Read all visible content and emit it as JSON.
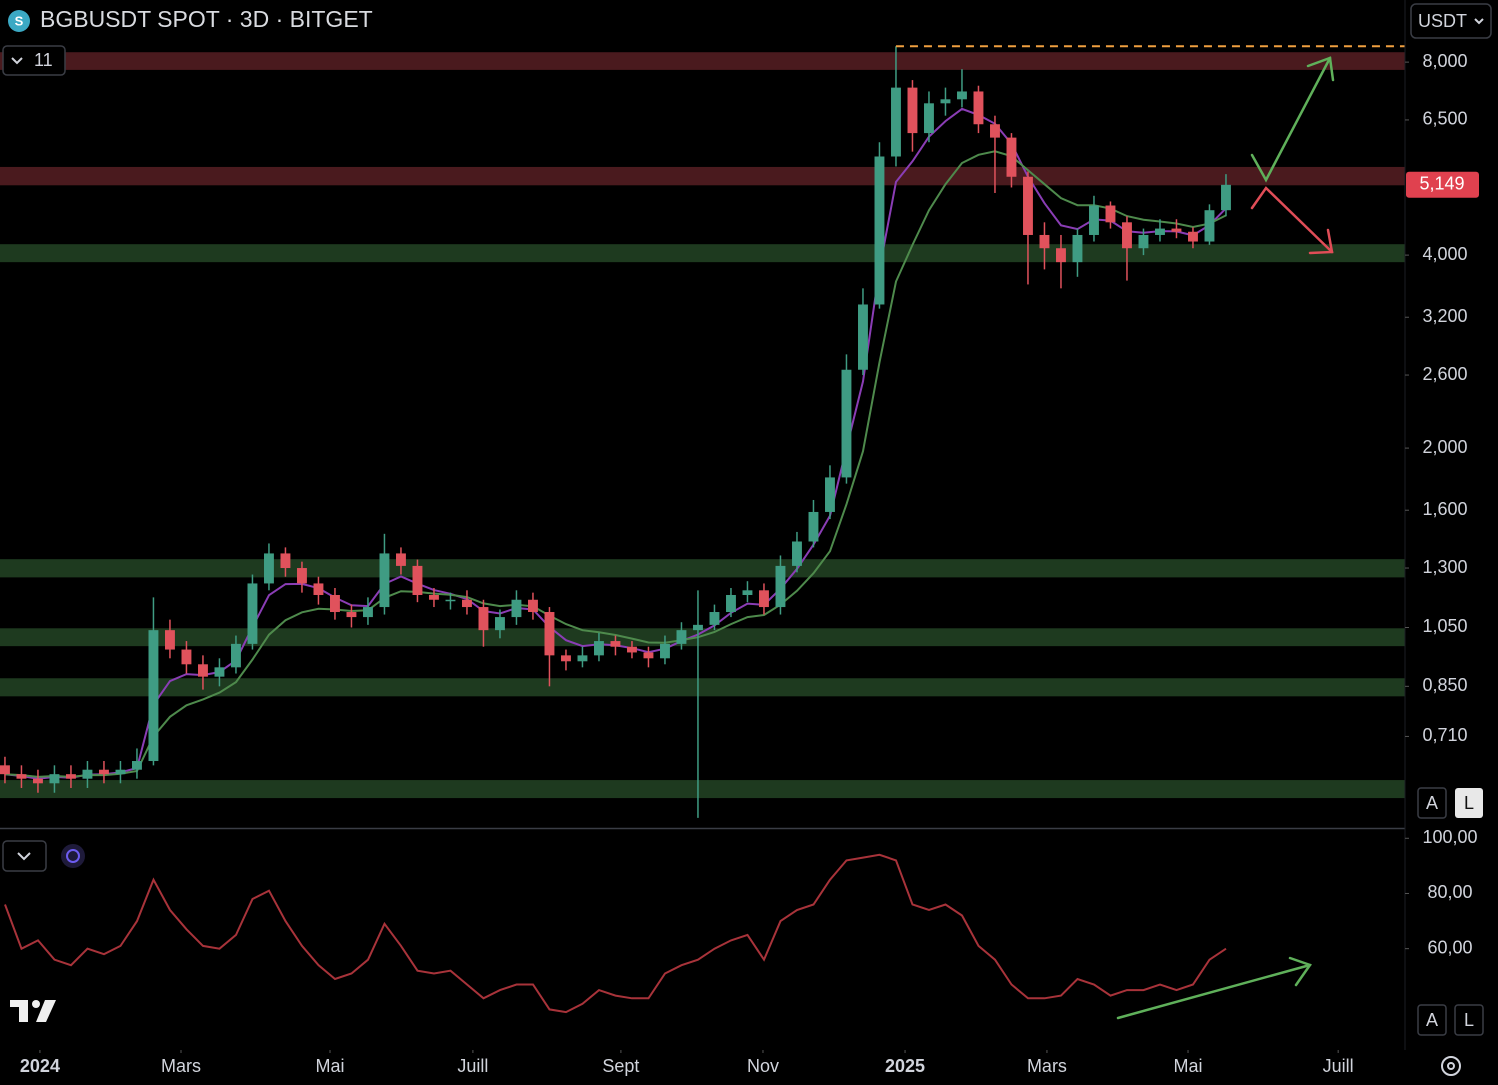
{
  "ui": {
    "indicator_count": "11",
    "currency": "USDT",
    "price_scale_buttons": [
      "A",
      "L"
    ],
    "rsi_scale_buttons": [
      "A",
      "L"
    ]
  },
  "chart_data": [
    {
      "type": "candlestick",
      "title": "BGBUSDT SPOT · 3D · BITGET",
      "log_scale": true,
      "up_color": "#3f9c83",
      "down_color": "#e0525c",
      "xlim": [
        -0.3,
        84.85
      ],
      "ylim": [
        0.511,
        10
      ],
      "yticks": [
        {
          "value": 8.0,
          "label": "8,000"
        },
        {
          "value": 6.5,
          "label": "6,500"
        },
        {
          "value": 4.0,
          "label": "4,000"
        },
        {
          "value": 3.2,
          "label": "3,200"
        },
        {
          "value": 2.6,
          "label": "2,600"
        },
        {
          "value": 2.0,
          "label": "2,000"
        },
        {
          "value": 1.6,
          "label": "1,600"
        },
        {
          "value": 1.3,
          "label": "1,300"
        },
        {
          "value": 1.05,
          "label": "1,050"
        },
        {
          "value": 0.85,
          "label": "0,850"
        },
        {
          "value": 0.71,
          "label": "0,710"
        }
      ],
      "last_price": {
        "value": 5.149,
        "label": "5,149"
      },
      "last_price_color": "#e0414f",
      "high_line": 8.47,
      "high_line_color": "#f0a040",
      "zones": [
        {
          "from": 7.78,
          "to": 8.29,
          "color": "#4a1a1e"
        },
        {
          "from": 5.14,
          "to": 5.49,
          "color": "#4a1a1e"
        },
        {
          "from": 3.9,
          "to": 4.16,
          "color": "#1e3a1f"
        },
        {
          "from": 1.257,
          "to": 1.342,
          "color": "#1e3a1f"
        },
        {
          "from": 0.982,
          "to": 1.047,
          "color": "#1e3a1f"
        },
        {
          "from": 0.82,
          "to": 0.875,
          "color": "#1e3a1f"
        },
        {
          "from": 0.569,
          "to": 0.607,
          "color": "#1e3a1f"
        }
      ],
      "candles": [
        [
          0.64,
          0.66,
          0.6,
          0.62
        ],
        [
          0.62,
          0.64,
          0.59,
          0.61
        ],
        [
          0.61,
          0.63,
          0.58,
          0.6
        ],
        [
          0.6,
          0.64,
          0.58,
          0.62
        ],
        [
          0.62,
          0.64,
          0.59,
          0.61
        ],
        [
          0.61,
          0.65,
          0.59,
          0.63
        ],
        [
          0.63,
          0.65,
          0.6,
          0.62
        ],
        [
          0.62,
          0.65,
          0.6,
          0.63
        ],
        [
          0.63,
          0.68,
          0.61,
          0.65
        ],
        [
          0.65,
          1.17,
          0.64,
          1.04
        ],
        [
          1.04,
          1.08,
          0.94,
          0.97
        ],
        [
          0.97,
          1.0,
          0.89,
          0.92
        ],
        [
          0.92,
          0.95,
          0.84,
          0.88
        ],
        [
          0.88,
          0.94,
          0.85,
          0.91
        ],
        [
          0.91,
          1.02,
          0.89,
          0.99
        ],
        [
          0.99,
          1.27,
          0.97,
          1.23
        ],
        [
          1.23,
          1.42,
          1.2,
          1.37
        ],
        [
          1.37,
          1.4,
          1.26,
          1.3
        ],
        [
          1.3,
          1.33,
          1.19,
          1.23
        ],
        [
          1.23,
          1.26,
          1.14,
          1.18
        ],
        [
          1.18,
          1.21,
          1.08,
          1.11
        ],
        [
          1.11,
          1.14,
          1.05,
          1.09
        ],
        [
          1.09,
          1.17,
          1.06,
          1.13
        ],
        [
          1.13,
          1.47,
          1.1,
          1.37
        ],
        [
          1.37,
          1.4,
          1.27,
          1.31
        ],
        [
          1.31,
          1.34,
          1.15,
          1.18
        ],
        [
          1.18,
          1.21,
          1.13,
          1.16
        ],
        [
          1.16,
          1.19,
          1.12,
          1.16
        ],
        [
          1.16,
          1.2,
          1.1,
          1.13
        ],
        [
          1.13,
          1.16,
          0.98,
          1.04
        ],
        [
          1.04,
          1.12,
          1.01,
          1.09
        ],
        [
          1.09,
          1.2,
          1.06,
          1.16
        ],
        [
          1.16,
          1.19,
          1.08,
          1.11
        ],
        [
          1.11,
          1.13,
          0.85,
          0.95
        ],
        [
          0.95,
          0.97,
          0.9,
          0.93
        ],
        [
          0.93,
          0.98,
          0.91,
          0.95
        ],
        [
          0.95,
          1.03,
          0.93,
          1.0
        ],
        [
          1.0,
          1.02,
          0.95,
          0.98
        ],
        [
          0.98,
          1.0,
          0.94,
          0.96
        ],
        [
          0.96,
          0.98,
          0.91,
          0.94
        ],
        [
          0.94,
          1.02,
          0.92,
          0.99
        ],
        [
          0.99,
          1.07,
          0.97,
          1.04
        ],
        [
          1.04,
          1.2,
          0.53,
          1.06
        ],
        [
          1.06,
          1.14,
          1.04,
          1.11
        ],
        [
          1.11,
          1.21,
          1.09,
          1.18
        ],
        [
          1.18,
          1.24,
          1.15,
          1.2
        ],
        [
          1.2,
          1.23,
          1.1,
          1.13
        ],
        [
          1.13,
          1.36,
          1.1,
          1.31
        ],
        [
          1.31,
          1.48,
          1.28,
          1.43
        ],
        [
          1.43,
          1.66,
          1.4,
          1.59
        ],
        [
          1.59,
          1.88,
          1.55,
          1.8
        ],
        [
          1.8,
          2.8,
          1.76,
          2.65
        ],
        [
          2.65,
          3.55,
          2.6,
          3.35
        ],
        [
          3.35,
          6.0,
          3.3,
          5.7
        ],
        [
          5.7,
          8.47,
          5.5,
          7.3
        ],
        [
          7.3,
          7.5,
          5.8,
          6.2
        ],
        [
          6.2,
          7.2,
          6.0,
          6.9
        ],
        [
          6.9,
          7.3,
          6.6,
          7.0
        ],
        [
          7.0,
          7.8,
          6.8,
          7.2
        ],
        [
          7.2,
          7.35,
          6.2,
          6.4
        ],
        [
          6.4,
          6.6,
          5.0,
          6.1
        ],
        [
          6.1,
          6.2,
          5.1,
          5.3
        ],
        [
          5.3,
          5.4,
          3.6,
          4.3
        ],
        [
          4.3,
          4.5,
          3.8,
          4.1
        ],
        [
          4.1,
          4.3,
          3.55,
          3.9
        ],
        [
          3.9,
          4.4,
          3.7,
          4.3
        ],
        [
          4.3,
          4.95,
          4.2,
          4.78
        ],
        [
          4.78,
          4.85,
          4.4,
          4.5
        ],
        [
          4.5,
          4.6,
          3.65,
          4.1
        ],
        [
          4.1,
          4.4,
          4.0,
          4.3
        ],
        [
          4.3,
          4.55,
          4.2,
          4.4
        ],
        [
          4.4,
          4.55,
          4.25,
          4.35
        ],
        [
          4.35,
          4.42,
          4.1,
          4.2
        ],
        [
          4.2,
          4.8,
          4.15,
          4.7
        ],
        [
          4.7,
          5.35,
          4.6,
          5.149
        ]
      ],
      "series": [
        {
          "color": "#8a3db5",
          "values": [
            0.62,
            0.616,
            0.61,
            0.614,
            0.612,
            0.619,
            0.62,
            0.624,
            0.634,
            0.796,
            0.866,
            0.888,
            0.885,
            0.895,
            0.933,
            1.052,
            1.179,
            1.227,
            1.228,
            1.209,
            1.169,
            1.137,
            1.134,
            1.228,
            1.261,
            1.229,
            1.201,
            1.185,
            1.163,
            1.114,
            1.104,
            1.126,
            1.12,
            1.052,
            1.003,
            0.982,
            0.989,
            0.985,
            0.975,
            0.961,
            0.973,
            1.0,
            1.024,
            1.058,
            1.107,
            1.144,
            1.139,
            1.207,
            1.296,
            1.414,
            1.568,
            2.001,
            2.541,
            3.805,
            5.203,
            5.602,
            6.121,
            6.473,
            6.764,
            6.618,
            6.411,
            5.967,
            5.3,
            4.82,
            4.452,
            4.391,
            4.547,
            4.528,
            4.357,
            4.334,
            4.36,
            4.356,
            4.294,
            4.456,
            4.733
          ]
        },
        {
          "color": "#4e8a4c",
          "values": [
            0.62,
            0.618,
            0.614,
            0.616,
            0.614,
            0.618,
            0.618,
            0.621,
            0.627,
            0.71,
            0.762,
            0.794,
            0.811,
            0.831,
            0.863,
            0.936,
            1.023,
            1.078,
            1.109,
            1.123,
            1.12,
            1.114,
            1.117,
            1.168,
            1.196,
            1.193,
            1.186,
            1.181,
            1.171,
            1.145,
            1.134,
            1.139,
            1.133,
            1.096,
            1.063,
            1.04,
            1.032,
            1.022,
            1.009,
            0.995,
            0.994,
            1.003,
            1.014,
            1.033,
            1.063,
            1.09,
            1.098,
            1.14,
            1.198,
            1.276,
            1.381,
            1.635,
            1.978,
            2.722,
            3.638,
            4.15,
            4.7,
            5.16,
            5.568,
            5.734,
            5.807,
            5.706,
            5.425,
            5.16,
            4.908,
            4.786,
            4.785,
            4.728,
            4.602,
            4.542,
            4.514,
            4.481,
            4.425,
            4.48,
            4.614
          ]
        }
      ]
    },
    {
      "type": "line",
      "xlim": [
        -0.3,
        84.85
      ],
      "ylim": [
        24,
        103
      ],
      "yticks": [
        {
          "value": 100,
          "label": "100,00"
        },
        {
          "value": 80,
          "label": "80,00"
        },
        {
          "value": 60,
          "label": "60,00"
        }
      ],
      "xticks": [
        {
          "value": 2.12,
          "label": "2024"
        },
        {
          "value": 10.67,
          "label": "Mars"
        },
        {
          "value": 19.7,
          "label": "Mai"
        },
        {
          "value": 28.36,
          "label": "Juill"
        },
        {
          "value": 37.33,
          "label": "Sept"
        },
        {
          "value": 45.94,
          "label": "Nov"
        },
        {
          "value": 54.55,
          "label": "2025"
        },
        {
          "value": 63.15,
          "label": "Mars"
        },
        {
          "value": 71.7,
          "label": "Mai"
        },
        {
          "value": 80.8,
          "label": "Juill"
        }
      ],
      "series": [
        {
          "color": "#a8333a",
          "values": [
            76,
            60,
            63,
            56,
            54,
            60,
            58,
            61,
            70,
            85,
            74,
            67,
            61,
            60,
            65,
            78,
            81,
            70,
            61,
            54,
            49,
            51,
            56,
            69,
            61,
            52,
            51,
            52,
            47,
            42,
            45,
            47,
            47,
            38,
            37,
            40,
            45,
            43,
            42,
            42,
            51,
            54,
            56,
            60,
            63,
            65,
            56,
            70,
            74,
            76,
            85,
            92,
            93,
            94,
            92,
            76,
            74,
            76,
            72,
            61,
            56,
            47,
            42,
            42,
            43,
            49,
            47,
            43,
            45,
            45,
            47,
            45,
            47,
            56,
            60
          ]
        }
      ]
    }
  ]
}
